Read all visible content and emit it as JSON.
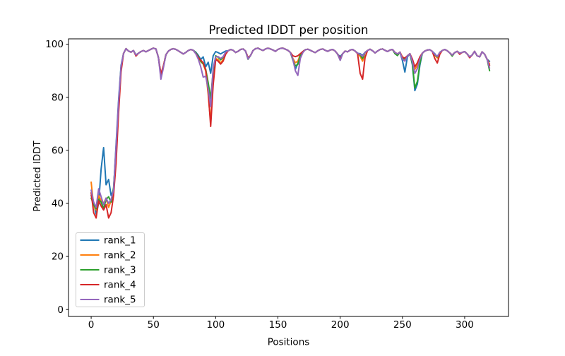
{
  "figure": {
    "background": "#ffffff",
    "title": "Predicted lDDT per position"
  },
  "axes": {
    "xlabel": "Positions",
    "ylabel": "Predicted lDDT",
    "xtick_labels": [
      "0",
      "50",
      "100",
      "150",
      "200",
      "250",
      "300"
    ],
    "ytick_labels": [
      "0",
      "20",
      "40",
      "60",
      "80",
      "100"
    ]
  },
  "legend": {
    "items": [
      {
        "label": "rank_1",
        "color": "#1f77b4"
      },
      {
        "label": "rank_2",
        "color": "#ff7f0e"
      },
      {
        "label": "rank_3",
        "color": "#2ca02c"
      },
      {
        "label": "rank_4",
        "color": "#d62728"
      },
      {
        "label": "rank_5",
        "color": "#9467bd"
      }
    ]
  },
  "chart_data": {
    "type": "line",
    "title": "Predicted lDDT per position",
    "xlabel": "Positions",
    "ylabel": "Predicted lDDT",
    "xlim": [
      -18.2,
      335.2
    ],
    "ylim": [
      -2.6,
      102
    ],
    "xticks": [
      0,
      50,
      100,
      150,
      200,
      250,
      300
    ],
    "yticks": [
      0,
      20,
      40,
      60,
      80,
      100
    ],
    "grid": false,
    "legend_position": "lower left",
    "x_start": 0,
    "x_step": 2,
    "x_end": 320,
    "series": [
      {
        "name": "rank_1",
        "color": "#1f77b4",
        "values": [
          43,
          40,
          36,
          40,
          53,
          61,
          47,
          49,
          43,
          45,
          62,
          79,
          92,
          96.5,
          98.3,
          97.4,
          97,
          97.6,
          95.9,
          96.6,
          97.2,
          97.6,
          97.1,
          97.6,
          98.1,
          98.5,
          98.2,
          95,
          88.5,
          91.5,
          96,
          97.4,
          98,
          98.3,
          98,
          97.5,
          96.9,
          96.3,
          96.9,
          97.6,
          98,
          97.7,
          97,
          95.8,
          94.2,
          95.2,
          91.5,
          93.2,
          89,
          95.6,
          97.2,
          96.8,
          96.3,
          96.9,
          97.4,
          97.5,
          98,
          97.7,
          96.9,
          97.3,
          98,
          98.2,
          97.4,
          94.9,
          95.7,
          97.6,
          98.3,
          98.5,
          98,
          97.6,
          98.2,
          98.5,
          98.2,
          97.8,
          97.3,
          98,
          98.4,
          98.5,
          98.1,
          97.7,
          96.9,
          94.2,
          90.5,
          92.8,
          96.2,
          97.2,
          97.9,
          98.1,
          97.7,
          97.2,
          96.8,
          97.5,
          98,
          98.2,
          97.7,
          97.3,
          97.8,
          98,
          97.4,
          96.2,
          95.3,
          96.4,
          97.4,
          97.1,
          97.8,
          98,
          97.4,
          96.6,
          96.4,
          95.8,
          96.9,
          97.6,
          98.1,
          97.5,
          96.7,
          97.4,
          98,
          98.2,
          97.7,
          97.2,
          97.8,
          98,
          96.9,
          96.3,
          97,
          93.8,
          89.5,
          95.2,
          96.4,
          92.2,
          82.5,
          85,
          92,
          96.6,
          97.4,
          97.8,
          97.9,
          97.3,
          96.4,
          95.2,
          96.9,
          97.6,
          98,
          97.5,
          96.7,
          95.9,
          96.8,
          97.3,
          96.6,
          96.9,
          97.2,
          96.3,
          95.2,
          95.9,
          97.3,
          95.6,
          95.2,
          97.1,
          96.2,
          94.3,
          93.5
        ]
      },
      {
        "name": "rank_2",
        "color": "#ff7f0e",
        "values": [
          48,
          39,
          37.5,
          43,
          41,
          40,
          42,
          38.5,
          41,
          44,
          58,
          76,
          90.5,
          96.5,
          98.3,
          97.4,
          97,
          97.6,
          95.9,
          96.6,
          97.2,
          97.6,
          97.1,
          97.6,
          98.1,
          98.5,
          98.2,
          95,
          88,
          91.5,
          96,
          97.4,
          98,
          98.3,
          98,
          97.5,
          96.9,
          96.3,
          96.9,
          97.6,
          98,
          97.7,
          96.7,
          95,
          93.4,
          92.5,
          89.8,
          81,
          70.5,
          87,
          94.6,
          94.2,
          92.9,
          94.2,
          96.4,
          97.5,
          98,
          97.7,
          96.9,
          97.3,
          98,
          98.2,
          97.4,
          94.9,
          95.7,
          97.6,
          98.3,
          98.5,
          98,
          97.6,
          98.2,
          98.5,
          98.2,
          97.8,
          97.3,
          98,
          98.4,
          98.5,
          98.1,
          97.7,
          96.9,
          94.6,
          93,
          93.6,
          96,
          97.2,
          97.9,
          98.1,
          97.7,
          97.2,
          96.8,
          97.5,
          98,
          98.2,
          97.7,
          97.3,
          97.8,
          98,
          97.4,
          96.2,
          94.2,
          96.4,
          97.4,
          97.1,
          97.8,
          98,
          97.4,
          96.6,
          95.4,
          93.6,
          96.9,
          97.6,
          98.1,
          97.5,
          96.7,
          97.4,
          98,
          98.2,
          97.7,
          97.2,
          97.8,
          98,
          96.9,
          96.3,
          97,
          95.2,
          94.6,
          95.6,
          96.4,
          94,
          90.5,
          92,
          95,
          96.6,
          97.4,
          97.8,
          97.9,
          97.3,
          95.8,
          94.8,
          96.9,
          97.6,
          98,
          97.5,
          96.7,
          95.9,
          96.8,
          97.3,
          96.6,
          96.9,
          97.2,
          96.3,
          95.2,
          95.9,
          97.3,
          95.6,
          95.2,
          97.1,
          96.2,
          94.3,
          92.5
        ]
      },
      {
        "name": "rank_3",
        "color": "#2ca02c",
        "values": [
          42,
          39.5,
          38,
          41.5,
          40.5,
          38,
          41.5,
          42.5,
          40.5,
          46,
          60,
          77,
          91,
          96.5,
          98.3,
          97.4,
          97,
          97.6,
          95.9,
          96.6,
          97.2,
          97.6,
          97.1,
          97.6,
          98.1,
          98.5,
          98.2,
          95,
          88.2,
          91.5,
          96,
          97.4,
          98,
          98.3,
          98,
          97.5,
          96.9,
          96.3,
          96.9,
          97.6,
          98,
          97.7,
          96.8,
          95.3,
          93.6,
          92.6,
          90.5,
          85.5,
          79.5,
          90,
          95.6,
          95.1,
          94.1,
          95.1,
          96.8,
          97.5,
          98,
          97.7,
          96.9,
          97.3,
          98,
          98.2,
          97.4,
          94.3,
          95.7,
          97.6,
          98.3,
          98.5,
          98,
          97.6,
          98.2,
          98.5,
          98.2,
          97.8,
          97.3,
          98,
          98.4,
          98.5,
          98.1,
          97.7,
          96.9,
          94,
          91.8,
          92.4,
          95.8,
          97.2,
          97.9,
          98.1,
          97.7,
          97.2,
          96.8,
          97.5,
          98,
          98.2,
          97.7,
          97.3,
          97.8,
          98,
          97.4,
          96.2,
          94,
          96.4,
          97.4,
          97.1,
          97.8,
          98,
          97.4,
          96.6,
          96,
          94.6,
          96.9,
          97.6,
          98.1,
          97.5,
          96.7,
          97.4,
          98,
          98.2,
          97.7,
          97.2,
          97.8,
          98,
          96.4,
          95.7,
          97,
          94.6,
          94.4,
          95.6,
          96.4,
          92.6,
          83.5,
          86,
          92.8,
          96.6,
          97.4,
          97.8,
          97.9,
          97.3,
          96,
          95.2,
          96.9,
          97.6,
          98,
          97.5,
          96.7,
          95.5,
          96.8,
          97.3,
          96.6,
          96.9,
          97.2,
          96.3,
          95.2,
          95.9,
          97.3,
          95.6,
          95.2,
          97.1,
          96.2,
          94.3,
          90
        ]
      },
      {
        "name": "rank_4",
        "color": "#d62728",
        "values": [
          44,
          36.5,
          34.5,
          41,
          39,
          37.5,
          39.5,
          34.5,
          36.5,
          43,
          55,
          74,
          89.5,
          96.5,
          98.3,
          97.4,
          97,
          97.6,
          95.5,
          96.6,
          97.2,
          97.6,
          97.1,
          97.6,
          98.1,
          98.5,
          98.2,
          95,
          88.8,
          91.8,
          96,
          97.4,
          98,
          98.3,
          98,
          97.5,
          96.9,
          96.3,
          96.9,
          97.6,
          98,
          97.7,
          96.5,
          95,
          94,
          93,
          90.2,
          82,
          69,
          84.5,
          94.2,
          93.6,
          92.5,
          93.6,
          96.2,
          97.5,
          98,
          97.7,
          96.9,
          97.3,
          98,
          98.2,
          97.4,
          94.9,
          95.7,
          97.6,
          98.3,
          98.5,
          98,
          97.6,
          98.2,
          98.5,
          98.2,
          97.8,
          97.3,
          98,
          98.4,
          98.5,
          98.1,
          97.7,
          96.9,
          95.6,
          95.3,
          95.6,
          96.4,
          97.2,
          97.9,
          98.1,
          97.7,
          97.2,
          96.8,
          97.5,
          98,
          98.2,
          97.7,
          97.3,
          97.8,
          98,
          97.4,
          96.2,
          94.5,
          96.4,
          97.4,
          97.1,
          97.8,
          98,
          97.4,
          96.4,
          89,
          86.8,
          95,
          97.6,
          98.1,
          97.5,
          96.7,
          97.4,
          98,
          98.2,
          97.7,
          97.2,
          97.8,
          98,
          96.9,
          96.3,
          97,
          95,
          94.8,
          95.6,
          96.4,
          94.4,
          91.5,
          93,
          95.2,
          96.6,
          97.4,
          97.8,
          97.9,
          97.3,
          94.6,
          92.9,
          96.2,
          97.6,
          98,
          97.5,
          96.7,
          95.9,
          96.8,
          97.3,
          96.2,
          96.9,
          97.2,
          96.3,
          94.9,
          95.9,
          97.3,
          95.6,
          95.2,
          97.1,
          96.2,
          94.3,
          92
        ]
      },
      {
        "name": "rank_5",
        "color": "#9467bd",
        "values": [
          45,
          40.5,
          38.5,
          45.5,
          42.5,
          39.5,
          42,
          40,
          41.5,
          45,
          61,
          78,
          91.5,
          96.5,
          98.3,
          97.4,
          97,
          97.6,
          95.9,
          96.6,
          97.2,
          97.6,
          97.1,
          97.6,
          98.1,
          98.5,
          98.2,
          95,
          86.8,
          91,
          96,
          97.4,
          98,
          98.3,
          98,
          97.5,
          96.9,
          96.3,
          96.9,
          97.6,
          98,
          97.7,
          96.4,
          94.4,
          91.5,
          87.6,
          87.9,
          83,
          76.5,
          91,
          95.2,
          95.3,
          94.6,
          95.3,
          97,
          97.5,
          98,
          97.7,
          96.9,
          97.3,
          98,
          98.2,
          97.4,
          94.4,
          95.7,
          97.6,
          98.3,
          98.5,
          98,
          97.6,
          98.2,
          98.5,
          98.2,
          97.8,
          97.3,
          98,
          98.4,
          98.5,
          98.1,
          97.7,
          96.9,
          94.4,
          90,
          88.2,
          94.6,
          96.8,
          97.9,
          98.1,
          97.7,
          97.2,
          96.8,
          97.5,
          98,
          98.2,
          97.7,
          97.3,
          97.8,
          98,
          97.4,
          96.2,
          93.9,
          96.4,
          97.4,
          97.1,
          97.8,
          98,
          97.4,
          96.6,
          96.2,
          95.4,
          96.9,
          97.6,
          98.1,
          97.5,
          96.7,
          97.4,
          98,
          98.2,
          97.7,
          97.2,
          97.8,
          98,
          96.9,
          96.3,
          97,
          94.4,
          93.6,
          95.6,
          96.4,
          93.4,
          89,
          90.8,
          94.4,
          96.6,
          97.4,
          97.8,
          97.9,
          97.3,
          96.2,
          95.4,
          96.9,
          97.6,
          98,
          97.5,
          96.7,
          95.9,
          96.8,
          97.3,
          96.6,
          96.9,
          97.2,
          96.3,
          95.2,
          95.9,
          97.3,
          95.6,
          95.2,
          97.1,
          96.2,
          94.3,
          91
        ]
      }
    ]
  }
}
